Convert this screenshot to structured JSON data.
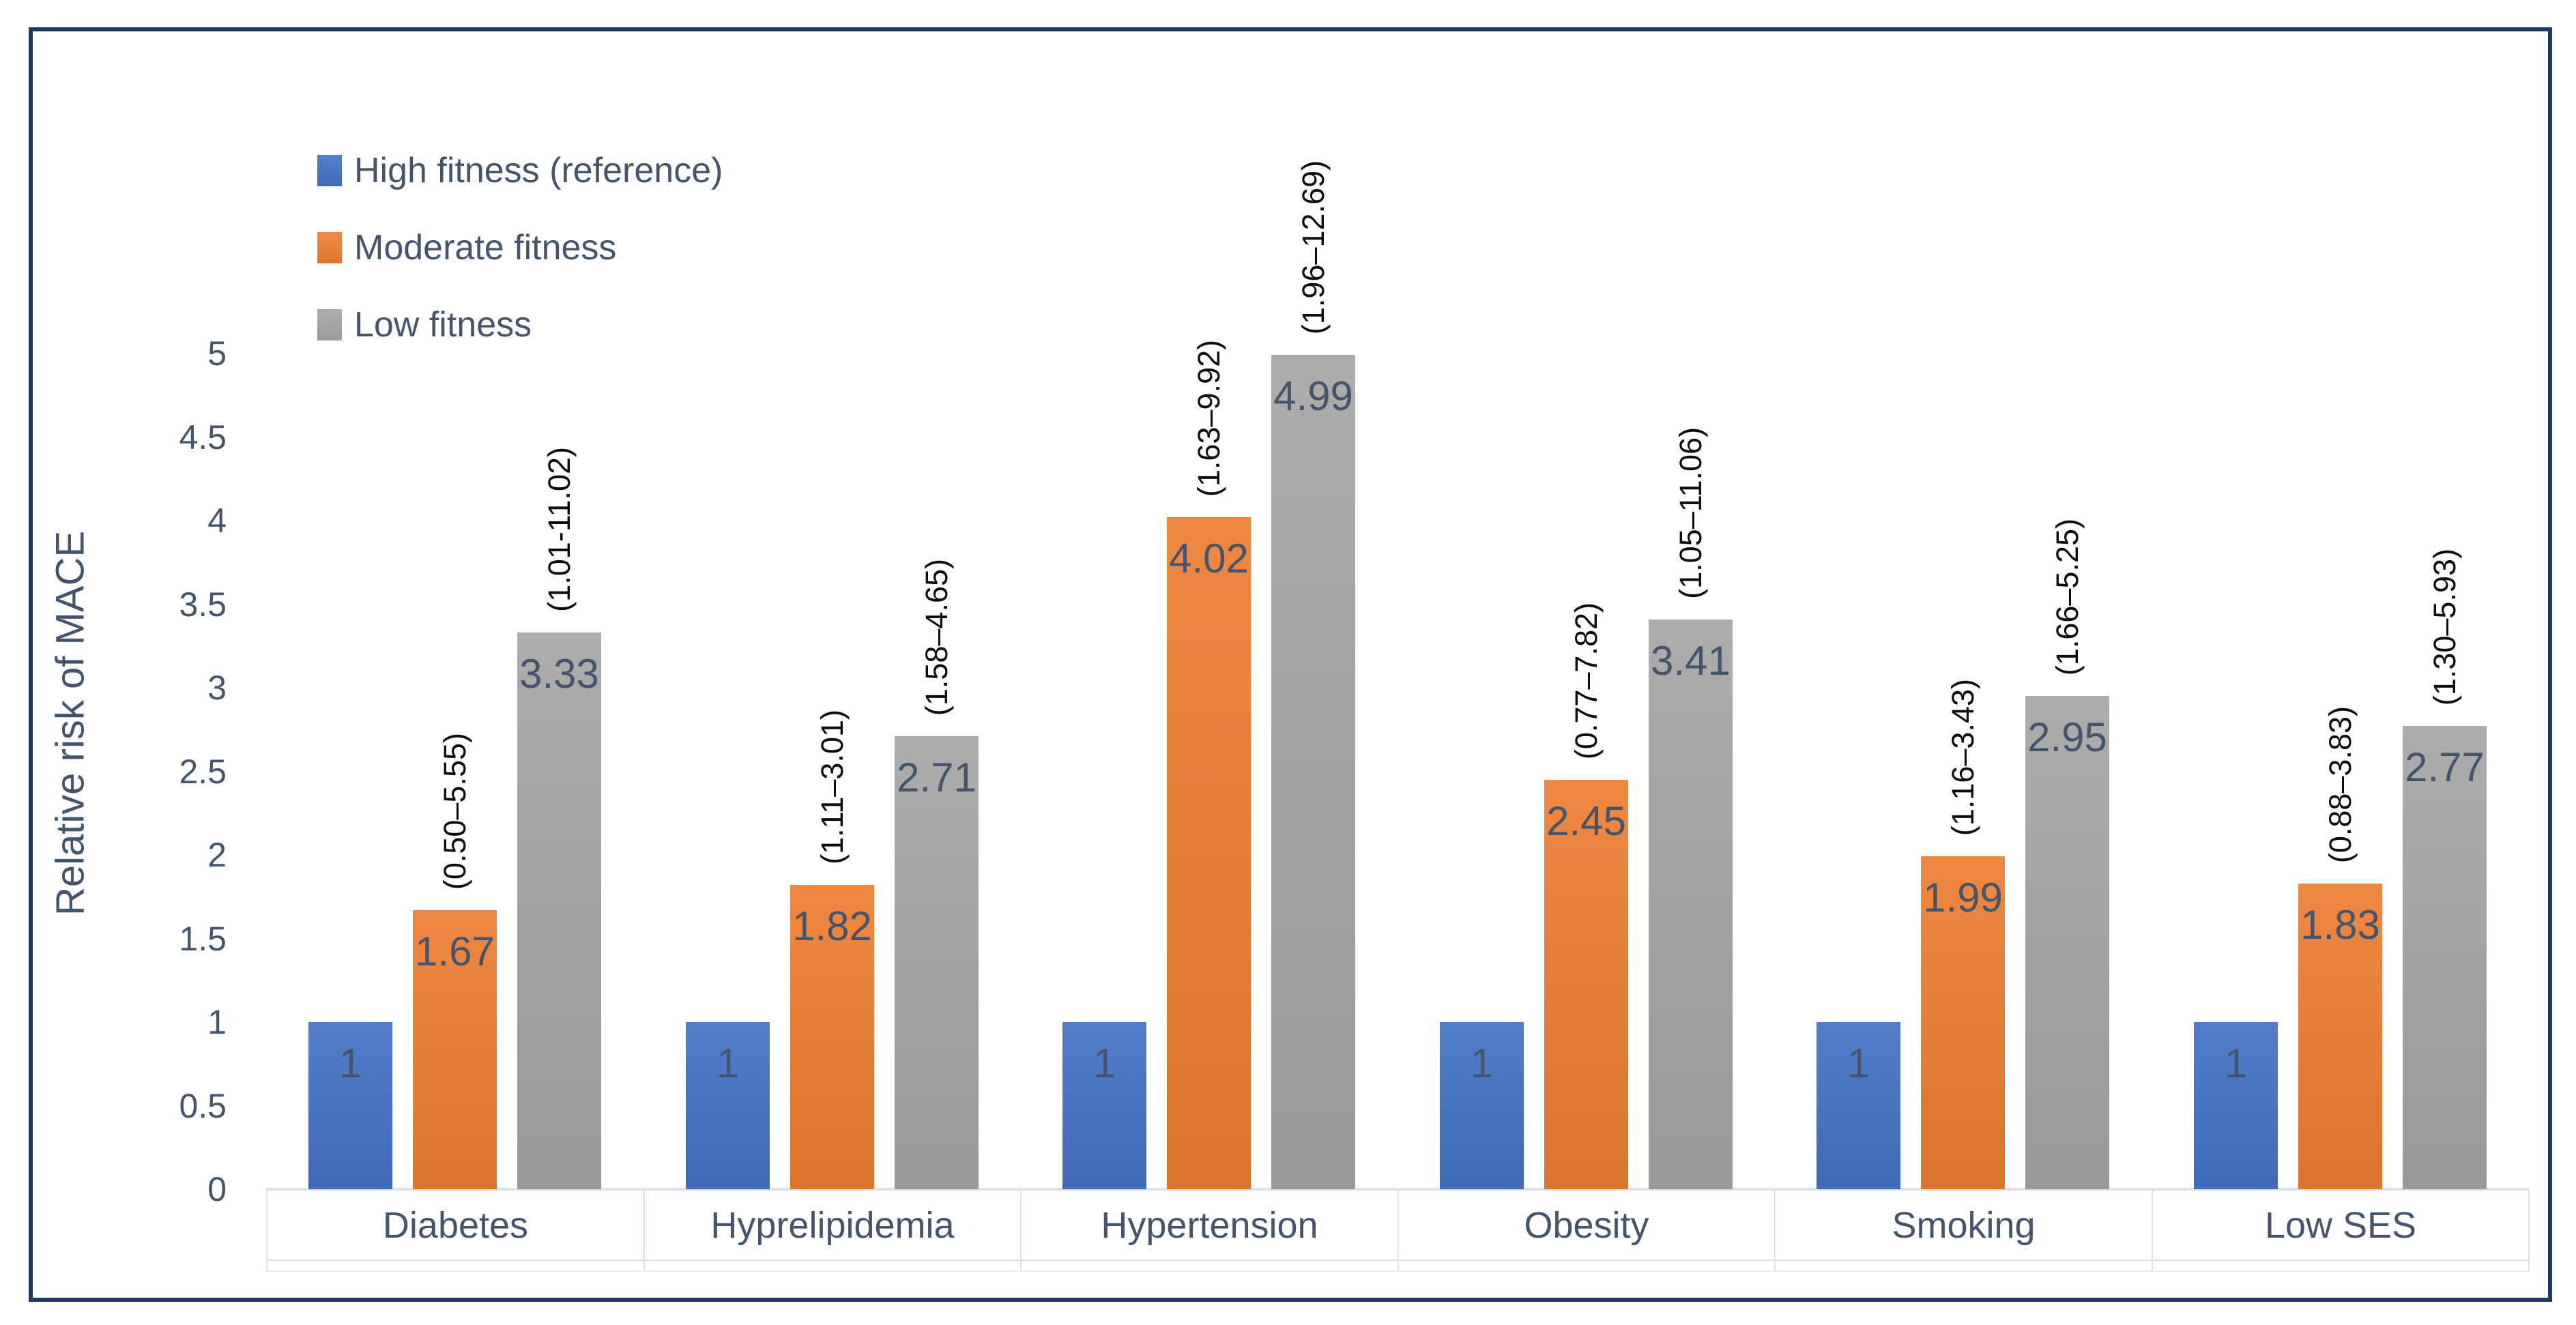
{
  "chart_data": {
    "type": "bar",
    "title": "",
    "xlabel": "",
    "ylabel": "Relative risk of MACE",
    "ylim": [
      0,
      5
    ],
    "ytick_step": 0.5,
    "yticks": [
      "0",
      "0.5",
      "1",
      "1.5",
      "2",
      "2.5",
      "3",
      "3.5",
      "4",
      "4.5",
      "5"
    ],
    "grid": false,
    "legend_position": "top-left",
    "categories": [
      "Diabetes",
      "Hyprelipidemia",
      "Hypertension",
      "Obesity",
      "Smoking",
      "Low SES"
    ],
    "series": [
      {
        "name": "High fitness (reference)",
        "color": "#4472C4",
        "values": [
          1,
          1,
          1,
          1,
          1,
          1
        ],
        "labels": [
          "1",
          "1",
          "1",
          "1",
          "1",
          "1"
        ],
        "ci": [
          "",
          "",
          "",
          "",
          "",
          ""
        ]
      },
      {
        "name": "Moderate fitness",
        "color": "#ED7D31",
        "values": [
          1.67,
          1.82,
          4.02,
          2.45,
          1.99,
          1.83
        ],
        "labels": [
          "1.67",
          "1.82",
          "4.02",
          "2.45",
          "1.99",
          "1.83"
        ],
        "ci": [
          "(0.50–5.55)",
          "(1.11–3.01)",
          "(1.63–9.92)",
          "(0.77–7.82)",
          "(1.16–3.43)",
          "(0.88–3.83)"
        ]
      },
      {
        "name": "Low fitness",
        "color": "#A5A5A5",
        "values": [
          3.33,
          2.71,
          4.99,
          3.41,
          2.95,
          2.77
        ],
        "labels": [
          "3.33",
          "2.71",
          "4.99",
          "3.41",
          "2.95",
          "2.77"
        ],
        "ci": [
          "(1.01-11.02)",
          "(1.58–4.65)",
          "(1.96–12.69)",
          "(1.05–11.06)",
          "(1.66–5.25)",
          "(1.30–5.93)"
        ]
      }
    ],
    "value_label_color": "#44546A",
    "ci_label_color": "#0d0d0d",
    "axis_text_color": "#44546A",
    "frame_border_color": "#1F3864"
  }
}
